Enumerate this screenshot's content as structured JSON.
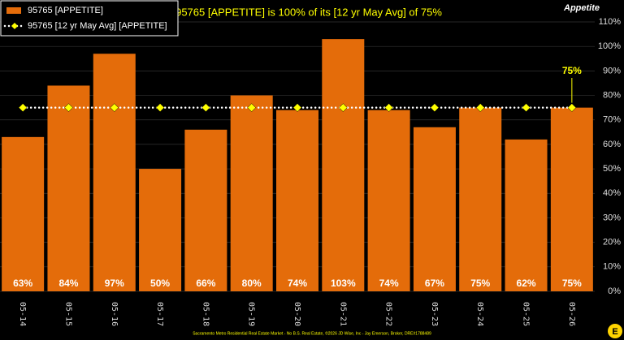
{
  "chart_data": {
    "type": "bar",
    "title": "95765 [APPETITE] is 100% of its [12 yr May Avg] of 75%",
    "panel_label": "Appetite",
    "footer": "Sacramento Metro Residential Real Estate Market - No B.S. Real Estate, ©2026 JD Wise, Inc - Jay Emerson, Broker, DRE#1788489",
    "annotation": "75%",
    "categories": [
      "05-14",
      "05-15",
      "05-16",
      "05-17",
      "05-18",
      "05-19",
      "05-20",
      "05-21",
      "05-22",
      "05-23",
      "05-24",
      "05-25",
      "05-26"
    ],
    "series": [
      {
        "name": "95765 [APPETITE]",
        "color": "#e46c0a",
        "type": "bar",
        "values": [
          63,
          84,
          97,
          50,
          66,
          80,
          74,
          103,
          74,
          67,
          75,
          62,
          75
        ],
        "value_labels": [
          "63%",
          "84%",
          "97%",
          "50%",
          "66%",
          "80%",
          "74%",
          "103%",
          "74%",
          "67%",
          "75%",
          "62%",
          "75%"
        ]
      },
      {
        "name": "95765 [12 yr May Avg] [APPETITE]",
        "color": "#ffff00",
        "type": "line",
        "values": [
          75,
          75,
          75,
          75,
          75,
          75,
          75,
          75,
          75,
          75,
          75,
          75,
          75
        ]
      }
    ],
    "ylim": [
      0,
      110
    ],
    "yticks": [
      {
        "value": 0,
        "label": "0%"
      },
      {
        "value": 10,
        "label": "10%"
      },
      {
        "value": 20,
        "label": "20%"
      },
      {
        "value": 30,
        "label": "30%"
      },
      {
        "value": 40,
        "label": "40%"
      },
      {
        "value": 50,
        "label": "50%"
      },
      {
        "value": 60,
        "label": "60%"
      },
      {
        "value": 70,
        "label": "70%"
      },
      {
        "value": 80,
        "label": "80%"
      },
      {
        "value": 90,
        "label": "90%"
      },
      {
        "value": 100,
        "label": "100%"
      },
      {
        "value": 110,
        "label": "110%"
      }
    ],
    "grid": true
  }
}
